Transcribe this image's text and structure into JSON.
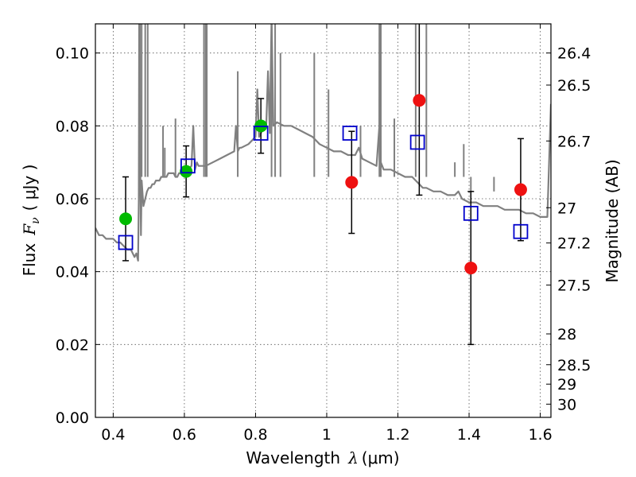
{
  "chart_data": {
    "type": "scatter",
    "xlabel": {
      "prefix": "Wavelength",
      "symbol": "λ",
      "units": "(μm)"
    },
    "ylabel": {
      "prefix": "Flux",
      "symbol": "F",
      "subscript": "ν",
      "units": "( μJy )"
    },
    "y2label": "Magnitude (AB)",
    "xlim": [
      0.35,
      1.63
    ],
    "ylim": [
      0.0,
      0.108
    ],
    "grid": true,
    "x_ticks": [
      {
        "value": 0.4,
        "label": "0.4"
      },
      {
        "value": 0.6,
        "label": "0.6"
      },
      {
        "value": 0.8,
        "label": "0.8"
      },
      {
        "value": 1.0,
        "label": "1"
      },
      {
        "value": 1.2,
        "label": "1.2"
      },
      {
        "value": 1.4,
        "label": "1.4"
      },
      {
        "value": 1.6,
        "label": "1.6"
      }
    ],
    "y_ticks": [
      {
        "value": 0.0,
        "label": "0.00"
      },
      {
        "value": 0.02,
        "label": "0.02"
      },
      {
        "value": 0.04,
        "label": "0.04"
      },
      {
        "value": 0.06,
        "label": "0.06"
      },
      {
        "value": 0.08,
        "label": "0.08"
      },
      {
        "value": 0.1,
        "label": "0.10"
      }
    ],
    "mag_ticks": [
      "26.4",
      "26.5",
      "26.7",
      "27",
      "27.2",
      "27.5",
      "28",
      "28.5",
      "29",
      "30"
    ],
    "colors": {
      "template": "#808080",
      "green": "#00bb00",
      "red": "#ee1111",
      "model": "#0000cc",
      "errorbar": "#000000",
      "grid": "#555555"
    },
    "series": [
      {
        "kind": "line",
        "color_key": "template",
        "x": [
          0.35,
          0.36,
          0.37,
          0.38,
          0.39,
          0.4,
          0.41,
          0.42,
          0.43,
          0.44,
          0.45,
          0.455,
          0.46,
          0.465,
          0.47,
          0.472,
          0.474,
          0.476,
          0.478,
          0.48,
          0.485,
          0.49,
          0.495,
          0.5,
          0.505,
          0.51,
          0.515,
          0.52,
          0.525,
          0.53,
          0.535,
          0.54,
          0.545,
          0.55,
          0.555,
          0.56,
          0.565,
          0.57,
          0.575,
          0.58,
          0.585,
          0.59,
          0.6,
          0.61,
          0.62,
          0.625,
          0.63,
          0.635,
          0.64,
          0.66,
          0.68,
          0.7,
          0.72,
          0.74,
          0.745,
          0.75,
          0.755,
          0.76,
          0.78,
          0.8,
          0.805,
          0.81,
          0.815,
          0.82,
          0.825,
          0.83,
          0.835,
          0.84,
          0.845,
          0.85,
          0.86,
          0.88,
          0.9,
          0.92,
          0.94,
          0.96,
          0.98,
          1.0,
          1.02,
          1.04,
          1.06,
          1.08,
          1.09,
          1.1,
          1.12,
          1.14,
          1.148,
          1.15,
          1.152,
          1.16,
          1.18,
          1.2,
          1.22,
          1.24,
          1.25,
          1.26,
          1.27,
          1.28,
          1.3,
          1.32,
          1.34,
          1.36,
          1.37,
          1.38,
          1.4,
          1.42,
          1.44,
          1.46,
          1.48,
          1.5,
          1.52,
          1.54,
          1.56,
          1.58,
          1.6,
          1.62,
          1.63
        ],
        "y": [
          0.052,
          0.05,
          0.05,
          0.049,
          0.049,
          0.049,
          0.048,
          0.048,
          0.047,
          0.046,
          0.046,
          0.045,
          0.044,
          0.045,
          0.043,
          0.06,
          0.15,
          0.07,
          0.05,
          0.065,
          0.058,
          0.06,
          0.062,
          0.063,
          0.063,
          0.064,
          0.064,
          0.065,
          0.065,
          0.065,
          0.066,
          0.066,
          0.066,
          0.066,
          0.067,
          0.067,
          0.067,
          0.067,
          0.066,
          0.066,
          0.067,
          0.067,
          0.068,
          0.068,
          0.069,
          0.08,
          0.068,
          0.07,
          0.069,
          0.069,
          0.07,
          0.071,
          0.072,
          0.073,
          0.08,
          0.073,
          0.074,
          0.074,
          0.075,
          0.077,
          0.09,
          0.077,
          0.078,
          0.079,
          0.079,
          0.08,
          0.095,
          0.078,
          0.11,
          0.08,
          0.081,
          0.08,
          0.08,
          0.079,
          0.078,
          0.077,
          0.075,
          0.074,
          0.073,
          0.073,
          0.072,
          0.072,
          0.074,
          0.071,
          0.07,
          0.069,
          0.08,
          0.15,
          0.07,
          0.068,
          0.068,
          0.067,
          0.066,
          0.066,
          0.065,
          0.064,
          0.063,
          0.063,
          0.062,
          0.062,
          0.061,
          0.061,
          0.062,
          0.06,
          0.059,
          0.059,
          0.058,
          0.058,
          0.058,
          0.057,
          0.057,
          0.057,
          0.056,
          0.056,
          0.055,
          0.055,
          0.086
        ],
        "spikes": [
          {
            "x": 0.48,
            "y": 0.15
          },
          {
            "x": 0.49,
            "y": 0.15
          },
          {
            "x": 0.497,
            "y": 0.15
          },
          {
            "x": 0.54,
            "y": 0.08
          },
          {
            "x": 0.545,
            "y": 0.074
          },
          {
            "x": 0.575,
            "y": 0.082
          },
          {
            "x": 0.655,
            "y": 0.15
          },
          {
            "x": 0.66,
            "y": 0.15
          },
          {
            "x": 0.663,
            "y": 0.15
          },
          {
            "x": 0.75,
            "y": 0.095
          },
          {
            "x": 0.845,
            "y": 0.15
          },
          {
            "x": 0.855,
            "y": 0.15
          },
          {
            "x": 0.87,
            "y": 0.1
          },
          {
            "x": 0.965,
            "y": 0.1
          },
          {
            "x": 1.005,
            "y": 0.09
          },
          {
            "x": 1.095,
            "y": 0.08
          },
          {
            "x": 1.148,
            "y": 0.15
          },
          {
            "x": 1.152,
            "y": 0.15
          },
          {
            "x": 1.19,
            "y": 0.082
          },
          {
            "x": 1.25,
            "y": 0.15
          },
          {
            "x": 1.28,
            "y": 0.15
          },
          {
            "x": 1.36,
            "y": 0.07
          },
          {
            "x": 1.385,
            "y": 0.075
          },
          {
            "x": 1.405,
            "y": 0.062
          },
          {
            "x": 1.47,
            "y": 0.062
          }
        ]
      },
      {
        "kind": "points",
        "marker": "circle",
        "color_key": "green",
        "points": [
          {
            "x": 0.435,
            "y": 0.0545,
            "err": 0.0115
          },
          {
            "x": 0.605,
            "y": 0.0675,
            "err": 0.007
          },
          {
            "x": 0.815,
            "y": 0.08,
            "err": 0.0075
          }
        ]
      },
      {
        "kind": "points",
        "marker": "circle",
        "color_key": "red",
        "points": [
          {
            "x": 1.07,
            "y": 0.0645,
            "err": 0.014
          },
          {
            "x": 1.26,
            "y": 0.087,
            "err": 0.026
          },
          {
            "x": 1.405,
            "y": 0.041,
            "err": 0.021
          },
          {
            "x": 1.545,
            "y": 0.0625,
            "err": 0.014
          }
        ]
      },
      {
        "kind": "points",
        "marker": "square",
        "color_key": "model",
        "points": [
          {
            "x": 0.435,
            "y": 0.048
          },
          {
            "x": 0.61,
            "y": 0.069
          },
          {
            "x": 0.815,
            "y": 0.078
          },
          {
            "x": 1.065,
            "y": 0.078
          },
          {
            "x": 1.255,
            "y": 0.0755
          },
          {
            "x": 1.405,
            "y": 0.056
          },
          {
            "x": 1.545,
            "y": 0.051
          }
        ]
      }
    ]
  }
}
